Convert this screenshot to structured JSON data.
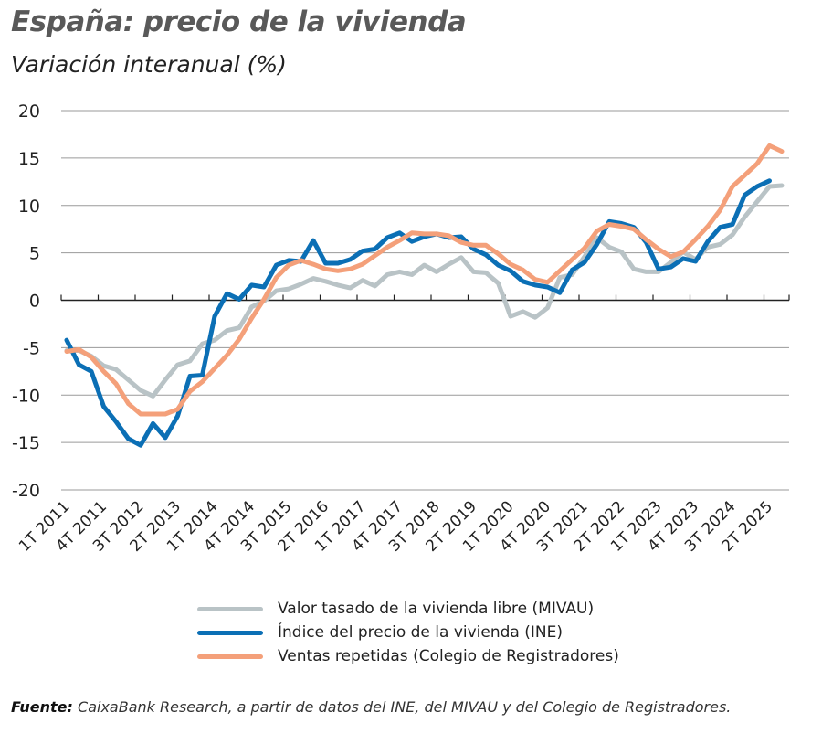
{
  "header": {
    "title": "España: precio de la vivienda",
    "subtitle": "Variación interanual (%)"
  },
  "legend": {
    "items": [
      {
        "label": "Valor tasado de la vivienda libre (MIVAU)",
        "color": "#B9C3C6"
      },
      {
        "label": "Índice del precio de la vivienda (INE)",
        "color": "#0B6FB5"
      },
      {
        "label": "Ventas repetidas (Colegio de Registradores)",
        "color": "#F4A07A"
      }
    ]
  },
  "source": {
    "prefix": "Fuente:",
    "text": " CaixaBank Research, a partir de datos del INE, del MIVAU y del Colegio de Registradores."
  },
  "chart_data": {
    "type": "line",
    "title": "España: precio de la vivienda",
    "subtitle": "Variación interanual (%)",
    "xlabel": "",
    "ylabel": "Variación interanual (%)",
    "ylim": [
      -20,
      20
    ],
    "yticks": [
      20,
      15,
      10,
      5,
      0,
      -5,
      -10,
      -15,
      -20
    ],
    "grid": true,
    "legend_position": "bottom",
    "x_tick_labels": [
      "1T 2011",
      "4T 2011",
      "3T 2012",
      "2T 2013",
      "1T 2014",
      "4T 2014",
      "3T 2015",
      "2T 2016",
      "1T 2017",
      "4T 2017",
      "3T 2018",
      "2T 2019",
      "1T 2020",
      "4T 2020",
      "3T 2021",
      "2T 2022",
      "1T 2023",
      "4T 2023",
      "3T 2024",
      "2T 2025"
    ],
    "x": [
      "1T 2011",
      "2T 2011",
      "3T 2011",
      "4T 2011",
      "1T 2012",
      "2T 2012",
      "3T 2012",
      "4T 2012",
      "1T 2013",
      "2T 2013",
      "3T 2013",
      "4T 2013",
      "1T 2014",
      "2T 2014",
      "3T 2014",
      "4T 2014",
      "1T 2015",
      "2T 2015",
      "3T 2015",
      "4T 2015",
      "1T 2016",
      "2T 2016",
      "3T 2016",
      "4T 2016",
      "1T 2017",
      "2T 2017",
      "3T 2017",
      "4T 2017",
      "1T 2018",
      "2T 2018",
      "3T 2018",
      "4T 2018",
      "1T 2019",
      "2T 2019",
      "3T 2019",
      "4T 2019",
      "1T 2020",
      "2T 2020",
      "3T 2020",
      "4T 2020",
      "1T 2021",
      "2T 2021",
      "3T 2021",
      "4T 2021",
      "1T 2022",
      "2T 2022",
      "3T 2022",
      "4T 2022",
      "1T 2023",
      "2T 2023",
      "3T 2023",
      "4T 2023",
      "1T 2024",
      "2T 2024",
      "3T 2024",
      "4T 2024",
      "1T 2025",
      "2T 2025",
      "3T 2025"
    ],
    "series": [
      {
        "name": "Valor tasado de la vivienda libre (MIVAU)",
        "color": "#B9C3C6",
        "values": [
          -5.3,
          -5.3,
          -5.9,
          -6.9,
          -7.3,
          -8.4,
          -9.5,
          -10.1,
          -8.4,
          -6.8,
          -6.4,
          -4.6,
          -4.2,
          -3.2,
          -2.9,
          -0.7,
          -0.1,
          1.0,
          1.2,
          1.7,
          2.3,
          2.0,
          1.6,
          1.3,
          2.1,
          1.5,
          2.7,
          3.0,
          2.7,
          3.7,
          3.0,
          3.8,
          4.5,
          3.0,
          2.9,
          1.8,
          -1.7,
          -1.2,
          -1.8,
          -0.8,
          2.4,
          2.7,
          4.6,
          6.6,
          5.6,
          5.1,
          3.3,
          3.0,
          3.0,
          4.0,
          5.1,
          4.3,
          5.6,
          5.9,
          6.9,
          8.8,
          10.4,
          12.0,
          12.1
        ]
      },
      {
        "name": "Índice del precio de la vivienda (INE)",
        "color": "#0B6FB5",
        "values": [
          -4.2,
          -6.8,
          -7.5,
          -11.2,
          -12.8,
          -14.6,
          -15.3,
          -13.0,
          -14.5,
          -12.2,
          -8.0,
          -7.9,
          -1.7,
          0.7,
          0.1,
          1.6,
          1.4,
          3.7,
          4.2,
          4.1,
          6.3,
          3.9,
          3.9,
          4.3,
          5.2,
          5.4,
          6.6,
          7.1,
          6.2,
          6.7,
          7.0,
          6.6,
          6.7,
          5.4,
          4.8,
          3.7,
          3.1,
          2.0,
          1.6,
          1.4,
          0.8,
          3.2,
          4.0,
          5.9,
          8.3,
          8.1,
          7.7,
          6.1,
          3.3,
          3.5,
          4.4,
          4.1,
          6.2,
          7.7,
          8.0,
          11.1,
          12.0,
          12.6
        ]
      },
      {
        "name": "Ventas repetidas (Colegio de Registradores)",
        "color": "#F4A07A",
        "values": [
          -5.4,
          -5.2,
          -6.0,
          -7.5,
          -8.8,
          -10.9,
          -12.0,
          -12.0,
          -12.0,
          -11.5,
          -9.6,
          -8.6,
          -7.2,
          -5.8,
          -4.1,
          -1.9,
          0.1,
          2.4,
          3.7,
          4.2,
          3.8,
          3.3,
          3.1,
          3.3,
          3.8,
          4.7,
          5.6,
          6.3,
          7.1,
          7.0,
          7.0,
          6.8,
          6.1,
          5.8,
          5.8,
          4.9,
          3.8,
          3.2,
          2.2,
          1.9,
          3.1,
          4.3,
          5.5,
          7.3,
          8.0,
          7.8,
          7.5,
          6.4,
          5.4,
          4.6,
          5.1,
          6.4,
          7.8,
          9.5,
          12.0,
          13.2,
          14.4,
          16.3,
          15.7
        ]
      }
    ]
  }
}
